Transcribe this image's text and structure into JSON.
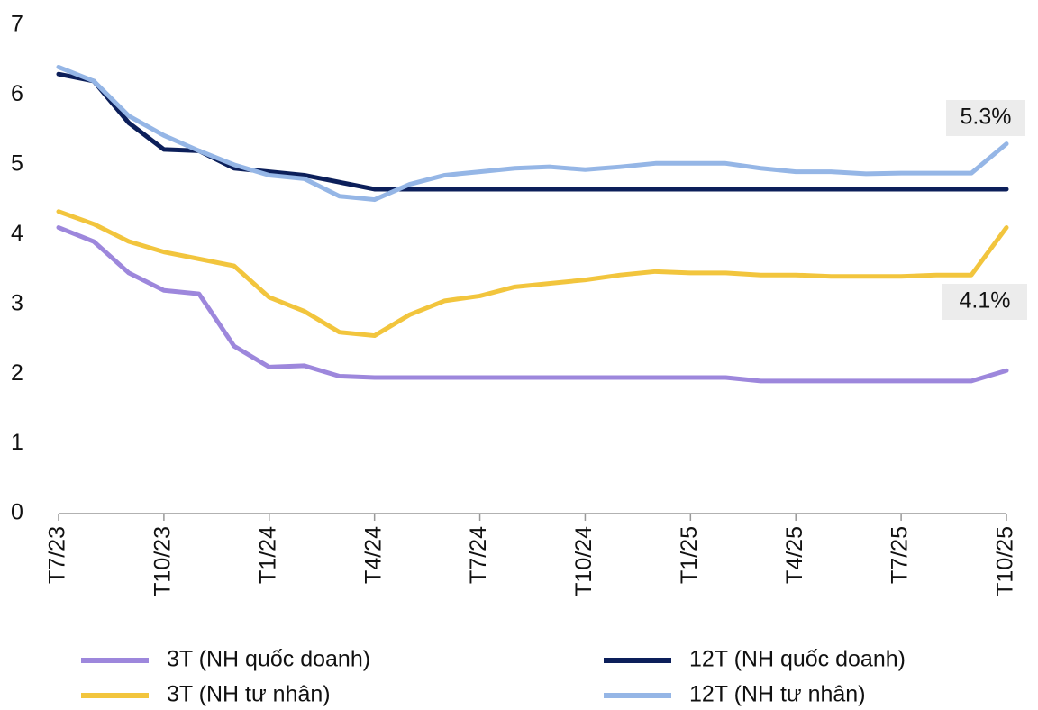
{
  "chart_data": {
    "type": "line",
    "categories": [
      "T7/23",
      null,
      null,
      "T10/23",
      null,
      null,
      "T1/24",
      null,
      null,
      "T4/24",
      null,
      null,
      "T7/24",
      null,
      null,
      "T10/24",
      null,
      null,
      "T1/25",
      null,
      null,
      "T4/25",
      null,
      null,
      "T7/25",
      null,
      null,
      "T10/25"
    ],
    "series": [
      {
        "name": "3T (NH quốc doanh)",
        "color": "#9d87dc",
        "values": [
          4.1,
          3.9,
          3.45,
          3.2,
          3.15,
          2.4,
          2.1,
          2.12,
          1.97,
          1.95,
          1.95,
          1.95,
          1.95,
          1.95,
          1.95,
          1.95,
          1.95,
          1.95,
          1.95,
          1.95,
          1.9,
          1.9,
          1.9,
          1.9,
          1.9,
          1.9,
          1.9,
          2.05
        ]
      },
      {
        "name": "12T (NH quốc doanh)",
        "color": "#0c1f5a",
        "values": [
          6.3,
          6.2,
          5.6,
          5.22,
          5.2,
          4.95,
          4.9,
          4.85,
          4.75,
          4.65,
          4.65,
          4.65,
          4.65,
          4.65,
          4.65,
          4.65,
          4.65,
          4.65,
          4.65,
          4.65,
          4.65,
          4.65,
          4.65,
          4.65,
          4.65,
          4.65,
          4.65,
          4.65
        ]
      },
      {
        "name": "3T (NH tư nhân)",
        "color": "#f2c53d",
        "values": [
          4.33,
          4.15,
          3.9,
          3.75,
          3.65,
          3.55,
          3.1,
          2.9,
          2.6,
          2.55,
          2.85,
          3.05,
          3.12,
          3.25,
          3.3,
          3.35,
          3.42,
          3.47,
          3.45,
          3.45,
          3.42,
          3.42,
          3.4,
          3.4,
          3.4,
          3.42,
          3.42,
          4.1
        ]
      },
      {
        "name": "12T (NH tư nhân)",
        "color": "#95b6e6",
        "values": [
          6.4,
          6.2,
          5.7,
          5.42,
          5.2,
          5.0,
          4.85,
          4.8,
          4.55,
          4.5,
          4.72,
          4.85,
          4.9,
          4.95,
          4.97,
          4.93,
          4.97,
          5.02,
          5.02,
          5.02,
          4.95,
          4.9,
          4.9,
          4.87,
          4.88,
          4.88,
          4.88,
          5.3
        ]
      }
    ],
    "annotations": [
      "5.3%",
      "4.1%"
    ],
    "ylim": [
      0,
      7
    ],
    "yticks": [
      0,
      1,
      2,
      3,
      4,
      5,
      6,
      7
    ],
    "grid": false
  }
}
